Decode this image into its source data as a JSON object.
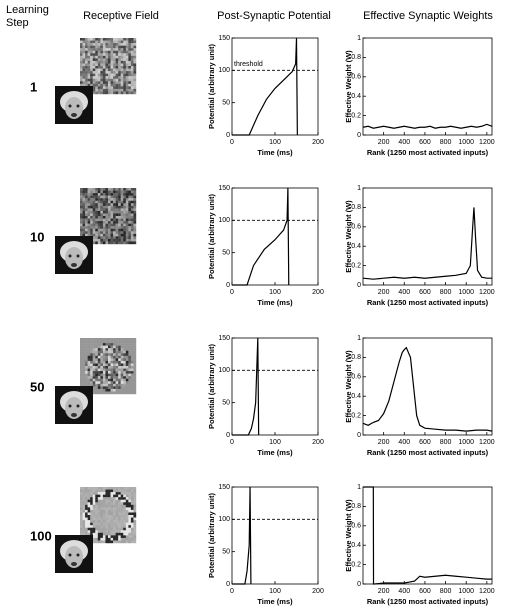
{
  "headers": {
    "step_line1": "Learning",
    "step_line2": "Step",
    "field": "Receptive Field",
    "psp": "Post-Synaptic Potential",
    "weights": "Effective Synaptic Weights"
  },
  "steps": [
    "1",
    "10",
    "50",
    "100"
  ],
  "chart_data": [
    {
      "type": "line",
      "xlabel": "Time (ms)",
      "ylabel": "Potential (arbitrary unit)",
      "xlim": [
        0,
        200
      ],
      "ylim": [
        0,
        150
      ],
      "xticks": [
        0,
        100,
        200
      ],
      "yticks": [
        0,
        50,
        100,
        150
      ],
      "threshold": 100,
      "annotation": "threshold",
      "color": "#000000",
      "x": [
        0,
        40,
        60,
        80,
        100,
        120,
        140,
        148,
        150,
        152
      ],
      "y": [
        0,
        0,
        30,
        55,
        72,
        85,
        98,
        110,
        150,
        0
      ]
    },
    {
      "type": "line",
      "xlabel": "Rank (1250 most activated inputs)",
      "ylabel": "Effective Weight (W)",
      "xlim": [
        0,
        1250
      ],
      "ylim": [
        0,
        1
      ],
      "xticks": [
        200,
        400,
        600,
        800,
        1000,
        1200
      ],
      "yticks": [
        0,
        0.2,
        0.4,
        0.6,
        0.8,
        1
      ],
      "color": "#000000",
      "x": [
        0,
        50,
        100,
        150,
        200,
        250,
        300,
        350,
        400,
        450,
        500,
        550,
        600,
        650,
        700,
        750,
        800,
        850,
        900,
        950,
        1000,
        1050,
        1100,
        1150,
        1200,
        1250
      ],
      "y": [
        0.08,
        0.09,
        0.07,
        0.08,
        0.09,
        0.08,
        0.07,
        0.08,
        0.09,
        0.08,
        0.07,
        0.08,
        0.08,
        0.09,
        0.07,
        0.08,
        0.08,
        0.09,
        0.08,
        0.07,
        0.08,
        0.09,
        0.08,
        0.09,
        0.11,
        0.09
      ]
    },
    {
      "type": "line",
      "xlabel": "Time (ms)",
      "ylabel": "Potential (arbitrary unit)",
      "xlim": [
        0,
        200
      ],
      "ylim": [
        0,
        150
      ],
      "xticks": [
        0,
        100,
        200
      ],
      "yticks": [
        0,
        50,
        100,
        150
      ],
      "threshold": 100,
      "color": "#000000",
      "x": [
        0,
        35,
        50,
        75,
        100,
        120,
        128,
        130,
        132
      ],
      "y": [
        0,
        0,
        30,
        55,
        70,
        85,
        100,
        150,
        0
      ]
    },
    {
      "type": "line",
      "xlabel": "Rank (1250 most activated inputs)",
      "ylabel": "Effective Weight (W)",
      "xlim": [
        0,
        1250
      ],
      "ylim": [
        0,
        1
      ],
      "xticks": [
        200,
        400,
        600,
        800,
        1000,
        1200
      ],
      "yticks": [
        0,
        0.2,
        0.4,
        0.6,
        0.8,
        1
      ],
      "color": "#000000",
      "x": [
        0,
        100,
        200,
        300,
        400,
        500,
        600,
        700,
        800,
        900,
        1000,
        1040,
        1060,
        1075,
        1090,
        1110,
        1150,
        1200,
        1250
      ],
      "y": [
        0.07,
        0.06,
        0.07,
        0.08,
        0.07,
        0.08,
        0.07,
        0.08,
        0.09,
        0.1,
        0.12,
        0.2,
        0.55,
        0.8,
        0.5,
        0.15,
        0.08,
        0.07,
        0.07
      ]
    },
    {
      "type": "line",
      "xlabel": "Time (ms)",
      "ylabel": "Potential (arbitrary unit)",
      "xlim": [
        0,
        200
      ],
      "ylim": [
        0,
        150
      ],
      "xticks": [
        0,
        100,
        200
      ],
      "yticks": [
        0,
        50,
        100,
        150
      ],
      "threshold": 100,
      "color": "#000000",
      "x": [
        0,
        38,
        45,
        50,
        55,
        60,
        62
      ],
      "y": [
        0,
        0,
        10,
        25,
        50,
        150,
        0
      ]
    },
    {
      "type": "line",
      "xlabel": "Rank (1250 most activated inputs)",
      "ylabel": "Effective Weight (W)",
      "xlim": [
        0,
        1250
      ],
      "ylim": [
        0,
        1
      ],
      "xticks": [
        200,
        400,
        600,
        800,
        1000,
        1200
      ],
      "yticks": [
        0,
        0.2,
        0.4,
        0.6,
        0.8,
        1
      ],
      "color": "#000000",
      "x": [
        0,
        50,
        100,
        150,
        200,
        250,
        300,
        350,
        380,
        400,
        420,
        440,
        460,
        480,
        500,
        520,
        550,
        600,
        700,
        800,
        900,
        1000,
        1100,
        1200,
        1250
      ],
      "y": [
        0.12,
        0.1,
        0.13,
        0.15,
        0.22,
        0.35,
        0.55,
        0.75,
        0.85,
        0.88,
        0.9,
        0.85,
        0.8,
        0.6,
        0.4,
        0.2,
        0.1,
        0.07,
        0.06,
        0.05,
        0.05,
        0.04,
        0.05,
        0.05,
        0.04
      ]
    },
    {
      "type": "line",
      "xlabel": "Time (ms)",
      "ylabel": "Potential (arbitrary unit)",
      "xlim": [
        0,
        200
      ],
      "ylim": [
        0,
        150
      ],
      "xticks": [
        0,
        100,
        200
      ],
      "yticks": [
        0,
        50,
        100,
        150
      ],
      "threshold": 100,
      "color": "#000000",
      "x": [
        0,
        30,
        35,
        40,
        42,
        44
      ],
      "y": [
        0,
        0,
        20,
        60,
        150,
        0
      ]
    },
    {
      "type": "line",
      "xlabel": "Rank (1250 most activated inputs)",
      "ylabel": "Effective Weight (W)",
      "xlim": [
        0,
        1250
      ],
      "ylim": [
        0,
        1
      ],
      "xticks": [
        200,
        400,
        600,
        800,
        1000,
        1200
      ],
      "yticks": [
        0,
        0.2,
        0.4,
        0.6,
        0.8,
        1
      ],
      "color": "#000000",
      "x": [
        0,
        100,
        102,
        110,
        200,
        300,
        400,
        500,
        550,
        600,
        700,
        800,
        900,
        1000,
        1100,
        1200,
        1250
      ],
      "y": [
        1,
        1,
        0,
        0,
        0.01,
        0.01,
        0.01,
        0.03,
        0.08,
        0.07,
        0.08,
        0.09,
        0.08,
        0.07,
        0.06,
        0.05,
        0.05
      ]
    }
  ]
}
